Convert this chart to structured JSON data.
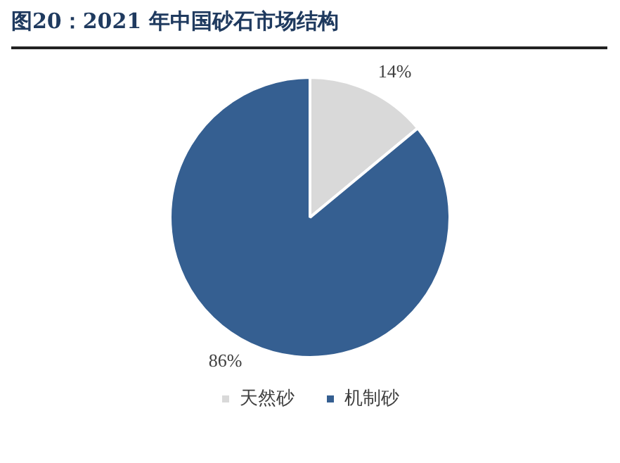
{
  "chart_data": {
    "type": "pie",
    "title": "图20：2021 年中国砂石市场结构",
    "categories": [
      "天然砂",
      "机制砂"
    ],
    "values": [
      14,
      86
    ],
    "colors": [
      "#d9d9d9",
      "#355f91"
    ],
    "value_labels": [
      "14%",
      "86%"
    ],
    "legend": "bottom"
  }
}
